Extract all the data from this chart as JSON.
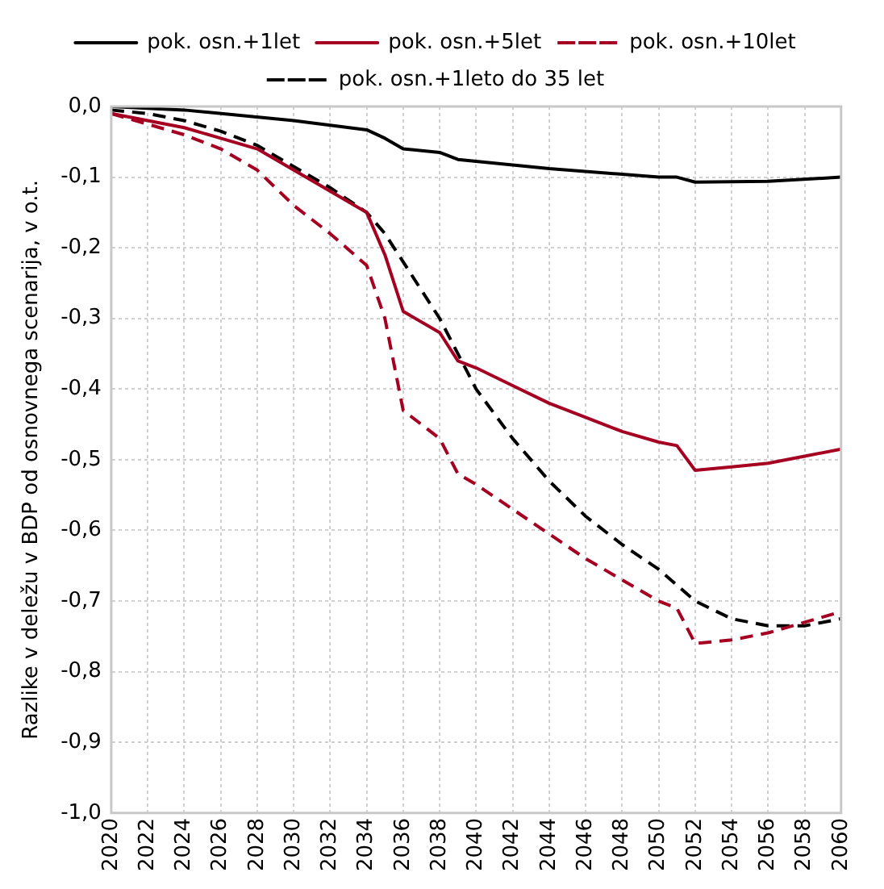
{
  "chart_data": {
    "type": "line",
    "ylabel": "Razlike v deležu v BDP od osnovnega scenarija, v o.t.",
    "legend": "top",
    "grid": true,
    "xlim": [
      2020,
      2060
    ],
    "xticks": [
      2020,
      2022,
      2024,
      2026,
      2028,
      2030,
      2032,
      2034,
      2036,
      2038,
      2040,
      2042,
      2044,
      2046,
      2048,
      2050,
      2052,
      2054,
      2056,
      2058,
      2060
    ],
    "ylim": [
      -1,
      0
    ],
    "yticks": [
      {
        "value": 0,
        "label": "0,0"
      },
      {
        "value": -0.1,
        "label": "-0,1"
      },
      {
        "value": -0.2,
        "label": "-0,2"
      },
      {
        "value": -0.3,
        "label": "-0,3"
      },
      {
        "value": -0.4,
        "label": "-0,4"
      },
      {
        "value": -0.5,
        "label": "-0,5"
      },
      {
        "value": -0.6,
        "label": "-0,6"
      },
      {
        "value": -0.7,
        "label": "-0,7"
      },
      {
        "value": -0.8,
        "label": "-0,8"
      },
      {
        "value": -0.9,
        "label": "-0,9"
      },
      {
        "value": -1,
        "label": "-1,0"
      }
    ],
    "marker": "none",
    "series": [
      {
        "name": "pok. osn.+1let",
        "color": "#000000",
        "line_style": "solid",
        "x": [
          2020,
          2024,
          2030,
          2034,
          2035,
          2036,
          2038,
          2039,
          2044,
          2050,
          2051,
          2052,
          2056,
          2060
        ],
        "values": [
          0,
          -0.005,
          -0.02,
          -0.033,
          -0.045,
          -0.06,
          -0.065,
          -0.075,
          -0.088,
          -0.1,
          -0.1,
          -0.107,
          -0.106,
          -0.1
        ]
      },
      {
        "name": "pok. osn.+5let",
        "color": "#a50021",
        "line_style": "solid",
        "x": [
          2020,
          2022,
          2024,
          2026,
          2028,
          2030,
          2032,
          2034,
          2035,
          2036,
          2038,
          2039,
          2040,
          2042,
          2044,
          2046,
          2048,
          2050,
          2051,
          2052,
          2054,
          2056,
          2058,
          2060
        ],
        "values": [
          -0.01,
          -0.02,
          -0.03,
          -0.045,
          -0.06,
          -0.09,
          -0.12,
          -0.15,
          -0.21,
          -0.29,
          -0.32,
          -0.36,
          -0.37,
          -0.395,
          -0.42,
          -0.44,
          -0.46,
          -0.475,
          -0.48,
          -0.515,
          -0.51,
          -0.505,
          -0.495,
          -0.485
        ]
      },
      {
        "name": "pok. osn.+10let",
        "color": "#a50021",
        "line_style": "dashed",
        "x": [
          2020,
          2022,
          2024,
          2026,
          2028,
          2030,
          2032,
          2034,
          2035,
          2036,
          2038,
          2039,
          2040,
          2042,
          2044,
          2046,
          2048,
          2050,
          2051,
          2052,
          2054,
          2056,
          2058,
          2060
        ],
        "values": [
          -0.01,
          -0.025,
          -0.04,
          -0.06,
          -0.09,
          -0.14,
          -0.18,
          -0.225,
          -0.3,
          -0.43,
          -0.47,
          -0.52,
          -0.535,
          -0.57,
          -0.605,
          -0.64,
          -0.67,
          -0.7,
          -0.71,
          -0.76,
          -0.755,
          -0.745,
          -0.73,
          -0.715
        ]
      },
      {
        "name": "pok. osn.+1leto do 35 let",
        "color": "#000000",
        "line_style": "dashed",
        "x": [
          2020,
          2022,
          2024,
          2026,
          2028,
          2030,
          2032,
          2034,
          2035,
          2036,
          2038,
          2040,
          2042,
          2044,
          2046,
          2048,
          2050,
          2052,
          2054,
          2056,
          2058,
          2060
        ],
        "values": [
          -0.005,
          -0.01,
          -0.02,
          -0.035,
          -0.055,
          -0.085,
          -0.115,
          -0.15,
          -0.18,
          -0.22,
          -0.3,
          -0.4,
          -0.47,
          -0.53,
          -0.58,
          -0.62,
          -0.655,
          -0.7,
          -0.725,
          -0.735,
          -0.735,
          -0.725
        ]
      }
    ]
  }
}
